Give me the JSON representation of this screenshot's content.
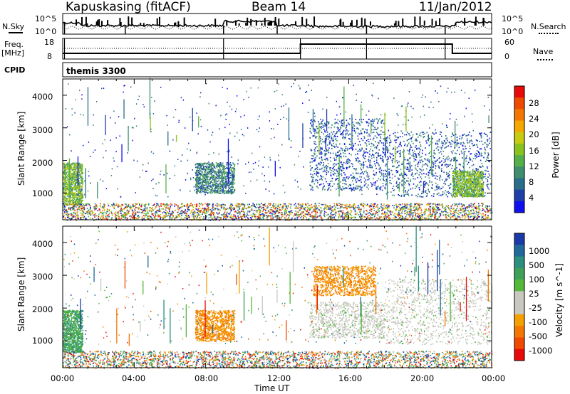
{
  "header": {
    "station": "Kapuskasing (fitACF)",
    "beam": "Beam 14",
    "date": "11/Jan/2012"
  },
  "nsky_panel": {
    "left_label": "N.Sky",
    "right_label": "N.Search",
    "left_ticks": [
      "10^5",
      "10^0"
    ],
    "right_ticks": [
      "10^5",
      "10^0"
    ]
  },
  "freq_panel": {
    "left_label_1": "Freq.",
    "left_label_2": "[MHz]",
    "right_label": "Nave",
    "left_ticks": [
      "18",
      "8"
    ],
    "right_ticks": [
      "60",
      "0"
    ]
  },
  "cpid_panel": {
    "label": "CPID",
    "program": "themis 3300"
  },
  "chart_data": [
    {
      "type": "heatmap",
      "name": "power",
      "ylabel": "Slant Range [km]",
      "xlabel": "Time UT",
      "xlim": [
        "00:00",
        "24:00"
      ],
      "ylim": [
        180,
        4500
      ],
      "y_ticks": [
        "1000",
        "2000",
        "3000",
        "4000"
      ],
      "x_ticks": [
        "00:00",
        "04:00",
        "08:00",
        "12:00",
        "16:00",
        "20:00",
        "00:00"
      ],
      "colorbar": {
        "label": "Power [dB]",
        "ticks": [
          "4",
          "8",
          "12",
          "16",
          "20",
          "24",
          "28"
        ],
        "colors": [
          "#1010ee",
          "#1f3fa8",
          "#2a6f8a",
          "#3f8f6f",
          "#56b04a",
          "#8ac21e",
          "#c8cc10",
          "#f4a800",
          "#f47800",
          "#ef4a00",
          "#e80a0a"
        ]
      },
      "echo_regions": [
        {
          "t_start": 0.0,
          "t_end": 1.1,
          "r_min": 650,
          "r_max": 1950,
          "level": 5
        },
        {
          "t_start": 7.4,
          "t_end": 9.6,
          "r_min": 1000,
          "r_max": 1950,
          "level": 3
        },
        {
          "t_start": 13.8,
          "t_end": 18.0,
          "r_min": 1100,
          "r_max": 3300,
          "level": 2
        },
        {
          "t_start": 18.0,
          "t_end": 23.9,
          "r_min": 900,
          "r_max": 2900,
          "level": 2
        },
        {
          "t_start": 21.8,
          "t_end": 23.5,
          "r_min": 900,
          "r_max": 1700,
          "level": 5
        },
        {
          "t_start": 0.0,
          "t_end": 24.0,
          "r_min": 180,
          "r_max": 700,
          "level": 4
        }
      ]
    },
    {
      "type": "heatmap",
      "name": "velocity",
      "ylabel": "Slant Range [km]",
      "xlabel": "Time UT",
      "xlim": [
        "00:00",
        "24:00"
      ],
      "ylim": [
        180,
        4500
      ],
      "y_ticks": [
        "1000",
        "2000",
        "3000",
        "4000"
      ],
      "x_ticks": [
        "00:00",
        "04:00",
        "08:00",
        "12:00",
        "16:00",
        "20:00",
        "00:00"
      ],
      "colorbar": {
        "label": "Velocity [m s^-1]",
        "ticks": [
          "1000",
          "500",
          "100",
          "25",
          "-25",
          "-100",
          "-500",
          "-1000"
        ],
        "colors": [
          "#1a3aa8",
          "#1f6a9a",
          "#2c8f80",
          "#3fa05a",
          "#54b83a",
          "#c8c8c0",
          "#c8c8c0",
          "#f4a000",
          "#f47800",
          "#ef4a00",
          "#e80a0a"
        ]
      },
      "echo_regions": [
        {
          "t_start": 0.0,
          "t_end": 1.1,
          "r_min": 650,
          "r_max": 1950,
          "velocity": 150
        },
        {
          "t_start": 7.4,
          "t_end": 9.6,
          "r_min": 1000,
          "r_max": 1950,
          "velocity": -150
        },
        {
          "t_start": 13.8,
          "t_end": 18.0,
          "r_min": 1100,
          "r_max": 2200,
          "velocity": 0
        },
        {
          "t_start": 14.0,
          "t_end": 17.5,
          "r_min": 2400,
          "r_max": 3300,
          "velocity": -200
        },
        {
          "t_start": 18.0,
          "t_end": 23.9,
          "r_min": 900,
          "r_max": 2900,
          "velocity": 0
        },
        {
          "t_start": 0.0,
          "t_end": 24.0,
          "r_min": 180,
          "r_max": 700,
          "velocity": 0
        }
      ]
    }
  ]
}
